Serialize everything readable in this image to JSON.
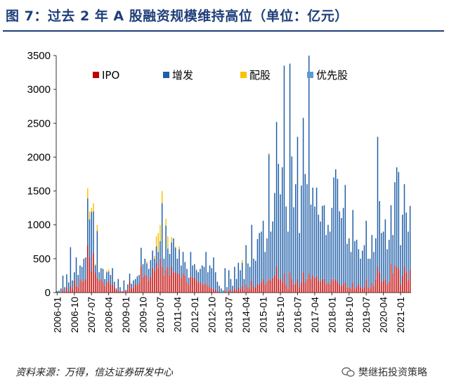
{
  "title": "图 7：过去 2 年 A 股融资规模维持高位（单位：亿元）",
  "source": "资料来源：万得，信达证券研发中心",
  "watermark": "樊继拓投资策略",
  "chart_data": {
    "type": "bar",
    "stacked": true,
    "title": "图 7：过去 2 年 A 股融资规模维持高位（单位：亿元）",
    "xlabel": "",
    "ylabel": "",
    "ylim": [
      0,
      3500
    ],
    "yticks": [
      0,
      500,
      1000,
      1500,
      2000,
      2500,
      3000,
      3500
    ],
    "grid": false,
    "legend_position": "top-left",
    "x_tick_labels": [
      "2006-01",
      "2006-10",
      "2007-07",
      "2008-04",
      "2009-01",
      "2009-10",
      "2010-07",
      "2011-04",
      "2012-01",
      "2012-10",
      "2013-07",
      "2014-04",
      "2015-01",
      "2015-10",
      "2016-07",
      "2017-04",
      "2018-01",
      "2018-10",
      "2019-07",
      "2020-04",
      "2021-01"
    ],
    "x_start": "2006-01",
    "x_end": "2021-06",
    "series": [
      {
        "name": "IPO",
        "color": "#c00000"
      },
      {
        "name": "增发",
        "color": "#1f5fa8"
      },
      {
        "name": "配股",
        "color": "#ffc000"
      },
      {
        "name": "优先股",
        "color": "#5b9bd5"
      }
    ],
    "x": [
      "2006-01",
      "2006-02",
      "2006-03",
      "2006-04",
      "2006-05",
      "2006-06",
      "2006-07",
      "2006-08",
      "2006-09",
      "2006-10",
      "2006-11",
      "2006-12",
      "2007-01",
      "2007-02",
      "2007-03",
      "2007-04",
      "2007-05",
      "2007-06",
      "2007-07",
      "2007-08",
      "2007-09",
      "2007-10",
      "2007-11",
      "2007-12",
      "2008-01",
      "2008-02",
      "2008-03",
      "2008-04",
      "2008-05",
      "2008-06",
      "2008-07",
      "2008-08",
      "2008-09",
      "2008-10",
      "2008-11",
      "2008-12",
      "2009-01",
      "2009-02",
      "2009-03",
      "2009-04",
      "2009-05",
      "2009-06",
      "2009-07",
      "2009-08",
      "2009-09",
      "2009-10",
      "2009-11",
      "2009-12",
      "2010-01",
      "2010-02",
      "2010-03",
      "2010-04",
      "2010-05",
      "2010-06",
      "2010-07",
      "2010-08",
      "2010-09",
      "2010-10",
      "2010-11",
      "2010-12",
      "2011-01",
      "2011-02",
      "2011-03",
      "2011-04",
      "2011-05",
      "2011-06",
      "2011-07",
      "2011-08",
      "2011-09",
      "2011-10",
      "2011-11",
      "2011-12",
      "2012-01",
      "2012-02",
      "2012-03",
      "2012-04",
      "2012-05",
      "2012-06",
      "2012-07",
      "2012-08",
      "2012-09",
      "2012-10",
      "2012-11",
      "2012-12",
      "2013-01",
      "2013-02",
      "2013-03",
      "2013-04",
      "2013-05",
      "2013-06",
      "2013-07",
      "2013-08",
      "2013-09",
      "2013-10",
      "2013-11",
      "2013-12",
      "2014-01",
      "2014-02",
      "2014-03",
      "2014-04",
      "2014-05",
      "2014-06",
      "2014-07",
      "2014-08",
      "2014-09",
      "2014-10",
      "2014-11",
      "2014-12",
      "2015-01",
      "2015-02",
      "2015-03",
      "2015-04",
      "2015-05",
      "2015-06",
      "2015-07",
      "2015-08",
      "2015-09",
      "2015-10",
      "2015-11",
      "2015-12",
      "2016-01",
      "2016-02",
      "2016-03",
      "2016-04",
      "2016-05",
      "2016-06",
      "2016-07",
      "2016-08",
      "2016-09",
      "2016-10",
      "2016-11",
      "2016-12",
      "2017-01",
      "2017-02",
      "2017-03",
      "2017-04",
      "2017-05",
      "2017-06",
      "2017-07",
      "2017-08",
      "2017-09",
      "2017-10",
      "2017-11",
      "2017-12",
      "2018-01",
      "2018-02",
      "2018-03",
      "2018-04",
      "2018-05",
      "2018-06",
      "2018-07",
      "2018-08",
      "2018-09",
      "2018-10",
      "2018-11",
      "2018-12",
      "2019-01",
      "2019-02",
      "2019-03",
      "2019-04",
      "2019-05",
      "2019-06",
      "2019-07",
      "2019-08",
      "2019-09",
      "2019-10",
      "2019-11",
      "2019-12",
      "2020-01",
      "2020-02",
      "2020-03",
      "2020-04",
      "2020-05",
      "2020-06",
      "2020-07",
      "2020-08",
      "2020-09",
      "2020-10",
      "2020-11",
      "2020-12",
      "2021-01",
      "2021-02",
      "2021-03",
      "2021-04",
      "2021-05",
      "2021-06"
    ],
    "totals": [
      20,
      30,
      60,
      250,
      80,
      270,
      150,
      670,
      180,
      300,
      520,
      260,
      400,
      380,
      500,
      520,
      1540,
      1200,
      1250,
      1320,
      420,
      1000,
      300,
      360,
      350,
      200,
      320,
      340,
      260,
      360,
      160,
      60,
      200,
      80,
      20,
      180,
      40,
      120,
      280,
      130,
      180,
      200,
      240,
      260,
      660,
      420,
      500,
      460,
      350,
      480,
      620,
      540,
      830,
      880,
      1000,
      1500,
      500,
      1090,
      830,
      570,
      820,
      800,
      680,
      500,
      680,
      400,
      600,
      450,
      350,
      220,
      600,
      400,
      420,
      350,
      300,
      350,
      400,
      380,
      600,
      300,
      400,
      360,
      520,
      300,
      160,
      100,
      60,
      30,
      360,
      80,
      330,
      200,
      100,
      380,
      200,
      440,
      330,
      480,
      200,
      700,
      430,
      380,
      1000,
      500,
      470,
      790,
      880,
      900,
      1060,
      600,
      800,
      2060,
      900,
      1050,
      1470,
      2520,
      1900,
      1450,
      1850,
      3350,
      1270,
      900,
      3380,
      2010,
      1260,
      1600,
      2300,
      880,
      1580,
      2580,
      1750,
      1600,
      3500,
      1300,
      1550,
      1270,
      1550,
      1150,
      1050,
      1280,
      1290,
      850,
      1000,
      900,
      1250,
      1700,
      1820,
      1680,
      1200,
      1100,
      1250,
      1590,
      720,
      800,
      600,
      1220,
      760,
      780,
      640,
      500,
      620,
      700,
      1060,
      500,
      500,
      850,
      600,
      800,
      2300,
      1350,
      880,
      900,
      1080,
      640,
      780,
      1290,
      850,
      1630,
      1850,
      1780,
      700,
      1150,
      1600,
      1180,
      900,
      1280,
      800,
      1200,
      1130,
      1150,
      1120
    ],
    "ipo": [
      0,
      10,
      0,
      50,
      20,
      80,
      20,
      100,
      60,
      180,
      100,
      80,
      200,
      160,
      180,
      200,
      700,
      520,
      320,
      580,
      300,
      220,
      180,
      200,
      150,
      100,
      150,
      170,
      120,
      120,
      80,
      30,
      40,
      20,
      10,
      20,
      30,
      40,
      160,
      60,
      80,
      120,
      110,
      140,
      380,
      230,
      260,
      250,
      180,
      230,
      360,
      320,
      440,
      360,
      500,
      380,
      250,
      340,
      380,
      250,
      380,
      300,
      300,
      280,
      280,
      220,
      280,
      250,
      160,
      120,
      230,
      220,
      220,
      180,
      150,
      150,
      120,
      120,
      140,
      100,
      80,
      60,
      60,
      40,
      20,
      10,
      0,
      0,
      40,
      0,
      40,
      40,
      20,
      60,
      30,
      80,
      60,
      100,
      40,
      120,
      80,
      60,
      180,
      90,
      80,
      120,
      120,
      150,
      200,
      120,
      160,
      200,
      180,
      220,
      250,
      380,
      200,
      200,
      150,
      280,
      120,
      60,
      300,
      200,
      120,
      120,
      200,
      80,
      150,
      300,
      150,
      200,
      280,
      200,
      250,
      220,
      240,
      180,
      160,
      200,
      200,
      120,
      150,
      120,
      200,
      180,
      200,
      160,
      120,
      100,
      120,
      150,
      80,
      80,
      60,
      150,
      60,
      90,
      120,
      80,
      60,
      80,
      200,
      80,
      60,
      140,
      100,
      200,
      380,
      300,
      150,
      180,
      200,
      120,
      160,
      420,
      280,
      400,
      380,
      350,
      120,
      250,
      380,
      300,
      180,
      340,
      180,
      260,
      240,
      280,
      260
    ],
    "pei": [
      0,
      0,
      0,
      0,
      0,
      0,
      0,
      0,
      0,
      0,
      0,
      0,
      0,
      0,
      0,
      0,
      150,
      120,
      60,
      120,
      20,
      90,
      0,
      0,
      0,
      0,
      20,
      30,
      0,
      0,
      0,
      0,
      0,
      0,
      0,
      0,
      0,
      0,
      0,
      0,
      0,
      0,
      0,
      0,
      0,
      0,
      0,
      30,
      0,
      0,
      0,
      40,
      150,
      280,
      240,
      180,
      0,
      100,
      180,
      0,
      80,
      0,
      20,
      0,
      40,
      0,
      0,
      0,
      0,
      0,
      0,
      0,
      0,
      20,
      0,
      0,
      0,
      0,
      0,
      0,
      0,
      0,
      0,
      0,
      0,
      0,
      0,
      0,
      0,
      0,
      0,
      0,
      0,
      0,
      0,
      0,
      0,
      40,
      0,
      0,
      0,
      0,
      0,
      0,
      0,
      0,
      0,
      0,
      0,
      0,
      0,
      20,
      0,
      0,
      0,
      0,
      0,
      0,
      0,
      0,
      0,
      0,
      0,
      0,
      0,
      0,
      0,
      0,
      0,
      0,
      0,
      0,
      0,
      0,
      0,
      0,
      0,
      0,
      0,
      0,
      0,
      0,
      0,
      0,
      0,
      0,
      0,
      0,
      0,
      0,
      0,
      0,
      0,
      0,
      0,
      0,
      0,
      0,
      0,
      0,
      0,
      0,
      0,
      0,
      0,
      0,
      0,
      0,
      0,
      0,
      0,
      0,
      0,
      0,
      0,
      0,
      0,
      0,
      0,
      0,
      0,
      0,
      0,
      0,
      0,
      0,
      0,
      0
    ],
    "pref": [
      0,
      0,
      0,
      0,
      0,
      0,
      0,
      0,
      0,
      0,
      0,
      0,
      0,
      0,
      0,
      0,
      0,
      0,
      0,
      0,
      0,
      0,
      0,
      0,
      0,
      0,
      0,
      0,
      0,
      0,
      0,
      0,
      0,
      0,
      0,
      0,
      0,
      0,
      0,
      0,
      0,
      0,
      0,
      0,
      0,
      0,
      0,
      0,
      0,
      0,
      0,
      0,
      0,
      0,
      0,
      0,
      0,
      0,
      0,
      0,
      0,
      0,
      0,
      0,
      0,
      0,
      0,
      0,
      0,
      0,
      0,
      0,
      0,
      0,
      0,
      0,
      0,
      0,
      0,
      0,
      0,
      0,
      0,
      0,
      0,
      0,
      0,
      0,
      0,
      0,
      0,
      0,
      0,
      0,
      0,
      0,
      0,
      0,
      0,
      0,
      0,
      0,
      0,
      0,
      0,
      0,
      0,
      0,
      0,
      0,
      0,
      0,
      0,
      0,
      0,
      0,
      0,
      0,
      0,
      0,
      0,
      0,
      0,
      0,
      0,
      0,
      0,
      0,
      0,
      0,
      0,
      0,
      0,
      0,
      0,
      0,
      0,
      0,
      0,
      0,
      0,
      0,
      0,
      0,
      0,
      0,
      0,
      0,
      0,
      0,
      0,
      0,
      0,
      0,
      0,
      0,
      0,
      0,
      0,
      0,
      0,
      0,
      0,
      0,
      0,
      0,
      0,
      0,
      0,
      0,
      0,
      0,
      0,
      0,
      0,
      0,
      0,
      0,
      0,
      0,
      0,
      0,
      0,
      0,
      0,
      0
    ]
  }
}
